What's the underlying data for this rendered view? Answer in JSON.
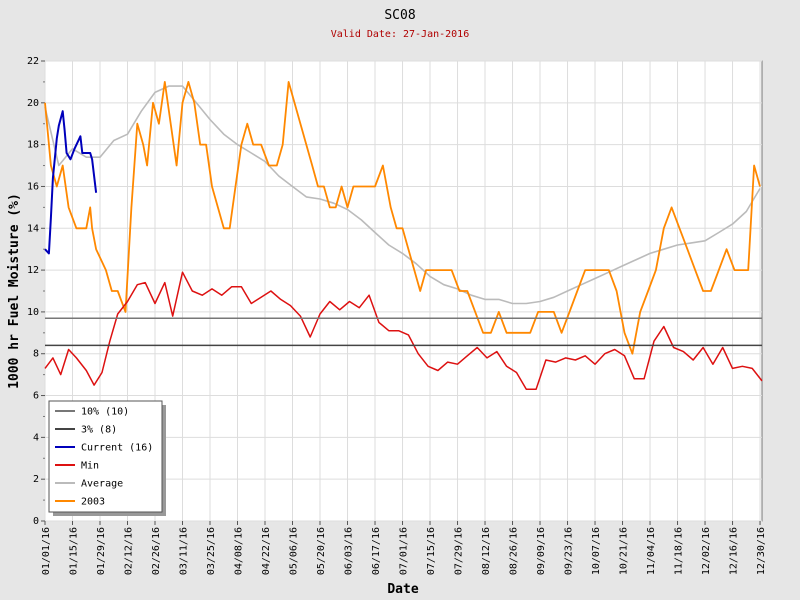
{
  "chart_data": {
    "type": "line",
    "title": "SC08",
    "subtitle": "Valid Date: 27-Jan-2016",
    "xlabel": "Date",
    "ylabel": "1000 hr Fuel Moisture (%)",
    "ylim": [
      0,
      22
    ],
    "yticks": [
      0,
      2,
      4,
      6,
      8,
      10,
      12,
      14,
      16,
      18,
      20,
      22
    ],
    "xlim_days": [
      0,
      365
    ],
    "xticks": [
      "01/01/16",
      "01/15/16",
      "01/29/16",
      "02/12/16",
      "02/26/16",
      "03/11/16",
      "03/25/16",
      "04/08/16",
      "04/22/16",
      "05/06/16",
      "05/20/16",
      "06/03/16",
      "06/17/16",
      "07/01/16",
      "07/15/16",
      "07/29/16",
      "08/12/16",
      "08/26/16",
      "09/09/16",
      "09/23/16",
      "10/07/16",
      "10/21/16",
      "11/04/16",
      "11/18/16",
      "12/02/16",
      "12/16/16",
      "12/30/16"
    ],
    "grid": true,
    "legend_position": "bottom-left",
    "colors": {
      "pct10": "#777777",
      "pct3": "#444444",
      "current": "#0000bb",
      "min": "#dd1111",
      "average": "#bbbbbb",
      "y2003": "#ff8800"
    },
    "reference_lines": [
      {
        "name": "10% (10)",
        "value": 9.7
      },
      {
        "name": "3% (8)",
        "value": 8.4
      }
    ],
    "series": [
      {
        "name": "Current (16)",
        "x": [
          "01/01/16",
          "01/03/16",
          "01/04/16",
          "01/05/16",
          "01/07/16",
          "01/08/16",
          "01/10/16",
          "01/11/16",
          "01/12/16",
          "01/14/16",
          "01/16/16",
          "01/19/16",
          "01/20/16",
          "01/22/16",
          "01/24/16",
          "01/25/16",
          "01/27/16"
        ],
        "values": [
          13.0,
          12.8,
          14.5,
          16.4,
          18.3,
          18.9,
          19.6,
          18.7,
          17.6,
          17.3,
          17.8,
          18.4,
          17.6,
          17.6,
          17.6,
          17.3,
          15.7
        ]
      },
      {
        "name": "Min",
        "x": [
          "01/01/16",
          "01/05/16",
          "01/09/16",
          "01/13/16",
          "01/17/16",
          "01/22/16",
          "01/26/16",
          "01/30/16",
          "02/03/16",
          "02/07/16",
          "02/12/16",
          "02/17/16",
          "02/21/16",
          "02/26/16",
          "03/02/16",
          "03/06/16",
          "03/11/16",
          "03/16/16",
          "03/21/16",
          "03/26/16",
          "03/31/16",
          "04/05/16",
          "04/10/16",
          "04/15/16",
          "04/20/16",
          "04/25/16",
          "04/30/16",
          "05/05/16",
          "05/10/16",
          "05/15/16",
          "05/20/16",
          "05/25/16",
          "05/30/16",
          "06/04/16",
          "06/09/16",
          "06/14/16",
          "06/19/16",
          "06/24/16",
          "06/29/16",
          "07/04/16",
          "07/09/16",
          "07/14/16",
          "07/19/16",
          "07/24/16",
          "07/29/16",
          "08/03/16",
          "08/08/16",
          "08/13/16",
          "08/18/16",
          "08/23/16",
          "08/28/16",
          "09/02/16",
          "09/07/16",
          "09/12/16",
          "09/17/16",
          "09/22/16",
          "09/27/16",
          "10/02/16",
          "10/07/16",
          "10/12/16",
          "10/17/16",
          "10/22/16",
          "10/27/16",
          "11/01/16",
          "11/06/16",
          "11/11/16",
          "11/16/16",
          "11/21/16",
          "11/26/16",
          "12/01/16",
          "12/06/16",
          "12/11/16",
          "12/16/16",
          "12/21/16",
          "12/26/16",
          "12/31/16"
        ],
        "values": [
          7.3,
          7.8,
          7.0,
          8.2,
          7.8,
          7.2,
          6.5,
          7.1,
          8.6,
          9.9,
          10.5,
          11.3,
          11.4,
          10.4,
          11.4,
          9.8,
          11.9,
          11.0,
          10.8,
          11.1,
          10.8,
          11.2,
          11.2,
          10.4,
          10.7,
          11.0,
          10.6,
          10.3,
          9.8,
          8.8,
          9.9,
          10.5,
          10.1,
          10.5,
          10.2,
          10.8,
          9.5,
          9.1,
          9.1,
          8.9,
          8.0,
          7.4,
          7.2,
          7.6,
          7.5,
          7.9,
          8.3,
          7.8,
          8.1,
          7.4,
          7.1,
          6.3,
          6.3,
          7.7,
          7.6,
          7.8,
          7.7,
          7.9,
          7.5,
          8.0,
          8.2,
          7.9,
          6.8,
          6.8,
          8.6,
          9.3,
          8.3,
          8.1,
          7.7,
          8.3,
          7.5,
          8.3,
          7.3,
          7.4,
          7.3,
          6.7
        ]
      },
      {
        "name": "Average",
        "x": [
          "01/01/16",
          "01/08/16",
          "01/15/16",
          "01/22/16",
          "01/29/16",
          "02/05/16",
          "02/12/16",
          "02/19/16",
          "02/26/16",
          "03/04/16",
          "03/11/16",
          "03/18/16",
          "03/25/16",
          "04/01/16",
          "04/08/16",
          "04/15/16",
          "04/22/16",
          "04/29/16",
          "05/06/16",
          "05/13/16",
          "05/20/16",
          "05/27/16",
          "06/03/16",
          "06/10/16",
          "06/17/16",
          "06/24/16",
          "07/01/16",
          "07/08/16",
          "07/15/16",
          "07/22/16",
          "07/29/16",
          "08/05/16",
          "08/12/16",
          "08/19/16",
          "08/26/16",
          "09/02/16",
          "09/09/16",
          "09/16/16",
          "09/23/16",
          "09/30/16",
          "10/07/16",
          "10/14/16",
          "10/21/16",
          "10/28/16",
          "11/04/16",
          "11/11/16",
          "11/18/16",
          "11/25/16",
          "12/02/16",
          "12/09/16",
          "12/16/16",
          "12/23/16",
          "12/30/16"
        ],
        "values": [
          19.8,
          17.0,
          17.8,
          17.4,
          17.4,
          18.2,
          18.5,
          19.6,
          20.5,
          20.8,
          20.8,
          20.0,
          19.2,
          18.5,
          18.0,
          17.6,
          17.2,
          16.5,
          16.0,
          15.5,
          15.4,
          15.2,
          14.9,
          14.4,
          13.8,
          13.2,
          12.8,
          12.3,
          11.7,
          11.3,
          11.1,
          10.8,
          10.6,
          10.6,
          10.4,
          10.4,
          10.5,
          10.7,
          11.0,
          11.3,
          11.6,
          11.9,
          12.2,
          12.5,
          12.8,
          13.0,
          13.2,
          13.3,
          13.4,
          13.8,
          14.2,
          14.8,
          15.9
        ]
      },
      {
        "name": "2003",
        "x": [
          "01/01/16",
          "01/04/16",
          "01/07/16",
          "01/10/16",
          "01/13/16",
          "01/17/16",
          "01/22/16",
          "01/24/16",
          "01/25/16",
          "01/27/16",
          "02/01/16",
          "02/04/16",
          "02/07/16",
          "02/11/16",
          "02/14/16",
          "02/17/16",
          "02/20/16",
          "02/22/16",
          "02/25/16",
          "02/28/16",
          "03/02/16",
          "03/05/16",
          "03/08/16",
          "03/11/16",
          "03/14/16",
          "03/17/16",
          "03/20/16",
          "03/23/16",
          "03/26/16",
          "03/29/16",
          "04/01/16",
          "04/04/16",
          "04/07/16",
          "04/10/16",
          "04/13/16",
          "04/16/16",
          "04/20/16",
          "04/24/16",
          "04/28/16",
          "05/01/16",
          "05/04/16",
          "05/07/16",
          "05/10/16",
          "05/13/16",
          "05/16/16",
          "05/19/16",
          "05/22/16",
          "05/25/16",
          "05/28/16",
          "05/31/16",
          "06/03/16",
          "06/06/16",
          "06/09/16",
          "06/13/16",
          "06/17/16",
          "06/21/16",
          "06/25/16",
          "06/28/16",
          "07/01/16",
          "07/04/16",
          "07/07/16",
          "07/10/16",
          "07/13/16",
          "07/16/16",
          "07/19/16",
          "07/22/16",
          "07/26/16",
          "07/30/16",
          "08/03/16",
          "08/07/16",
          "08/11/16",
          "08/15/16",
          "08/19/16",
          "08/23/16",
          "08/27/16",
          "08/31/16",
          "09/04/16",
          "09/08/16",
          "09/12/16",
          "09/16/16",
          "09/20/16",
          "09/24/16",
          "09/28/16",
          "10/02/16",
          "10/06/16",
          "10/10/16",
          "10/14/16",
          "10/18/16",
          "10/22/16",
          "10/26/16",
          "10/30/16",
          "11/03/16",
          "11/07/16",
          "11/11/16",
          "11/15/16",
          "11/19/16",
          "11/23/16",
          "11/27/16",
          "12/01/16",
          "12/05/16",
          "12/09/16",
          "12/13/16",
          "12/17/16",
          "12/21/16",
          "12/24/16",
          "12/27/16",
          "12/30/16"
        ],
        "values": [
          20.0,
          17.0,
          16.0,
          17.0,
          15.0,
          14.0,
          14.0,
          15.0,
          14.0,
          13.0,
          12.0,
          11.0,
          11.0,
          10.0,
          15.0,
          19.0,
          18.0,
          17.0,
          20.0,
          19.0,
          21.0,
          19.0,
          17.0,
          20.0,
          21.0,
          20.0,
          18.0,
          18.0,
          16.0,
          15.0,
          14.0,
          14.0,
          16.0,
          18.0,
          19.0,
          18.0,
          18.0,
          17.0,
          17.0,
          18.0,
          21.0,
          20.0,
          19.0,
          18.0,
          17.0,
          16.0,
          16.0,
          15.0,
          15.0,
          16.0,
          15.0,
          16.0,
          16.0,
          16.0,
          16.0,
          17.0,
          15.0,
          14.0,
          14.0,
          13.0,
          12.0,
          11.0,
          12.0,
          12.0,
          12.0,
          12.0,
          12.0,
          11.0,
          11.0,
          10.0,
          9.0,
          9.0,
          10.0,
          9.0,
          9.0,
          9.0,
          9.0,
          10.0,
          10.0,
          10.0,
          9.0,
          10.0,
          11.0,
          12.0,
          12.0,
          12.0,
          12.0,
          11.0,
          9.0,
          8.0,
          10.0,
          11.0,
          12.0,
          14.0,
          15.0,
          14.0,
          13.0,
          12.0,
          11.0,
          11.0,
          12.0,
          13.0,
          12.0,
          12.0,
          12.0,
          17.0,
          16.0
        ]
      },
      {
        "name": "10% (10)",
        "x": [
          "01/01/16",
          "12/31/16"
        ],
        "values": [
          9.7,
          9.7
        ]
      },
      {
        "name": "3% (8)",
        "x": [
          "01/01/16",
          "12/31/16"
        ],
        "values": [
          8.4,
          8.4
        ]
      }
    ],
    "legend": [
      "10% (10)",
      "3% (8)",
      "Current (16)",
      "Min",
      "Average",
      "2003"
    ]
  }
}
